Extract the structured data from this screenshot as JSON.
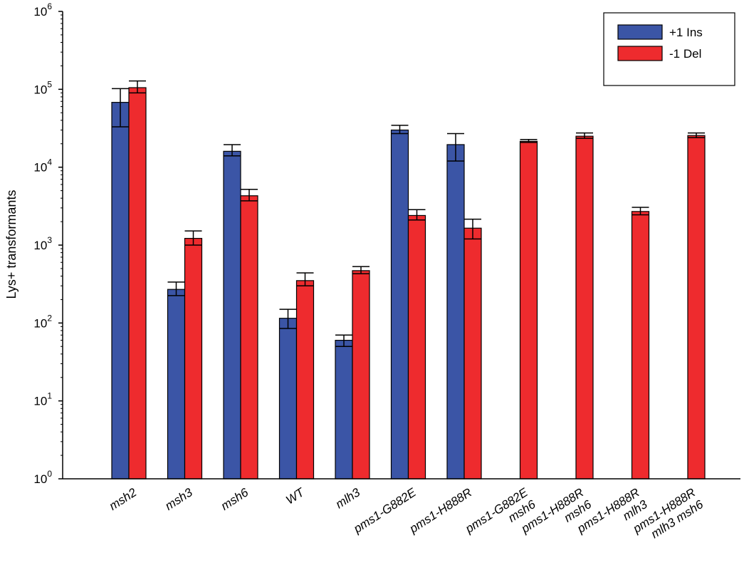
{
  "chart_data": {
    "type": "bar",
    "title": "",
    "xlabel": "",
    "ylabel": "Lys+ transformants",
    "yscale": "log",
    "ylim": [
      1,
      1000000
    ],
    "y_ticks": [
      {
        "value": 1,
        "base": "10",
        "exp": "0"
      },
      {
        "value": 10,
        "base": "10",
        "exp": "1"
      },
      {
        "value": 100,
        "base": "10",
        "exp": "2"
      },
      {
        "value": 1000,
        "base": "10",
        "exp": "3"
      },
      {
        "value": 10000,
        "base": "10",
        "exp": "4"
      },
      {
        "value": 100000,
        "base": "10",
        "exp": "5"
      },
      {
        "value": 1000000,
        "base": "10",
        "exp": "6"
      }
    ],
    "grid": false,
    "legend_position": "top-right",
    "categories": [
      {
        "lines": [
          "msh2"
        ]
      },
      {
        "lines": [
          "msh3"
        ]
      },
      {
        "lines": [
          "msh6"
        ]
      },
      {
        "lines": [
          "WT"
        ]
      },
      {
        "lines": [
          "mlh3"
        ]
      },
      {
        "lines": [
          "pms1-G882E"
        ]
      },
      {
        "lines": [
          "pms1-H888R"
        ]
      },
      {
        "lines": [
          "pms1-G882E",
          "msh6"
        ]
      },
      {
        "lines": [
          "pms1-H888R",
          "msh6"
        ]
      },
      {
        "lines": [
          "pms1-H888R",
          "mlh3"
        ]
      },
      {
        "lines": [
          "pms1-H888R",
          "mlh3 msh6"
        ]
      }
    ],
    "series": [
      {
        "name": "+1 Ins",
        "color": "#3b55a6",
        "values": [
          68000,
          270,
          16000,
          115,
          60,
          30000,
          19500,
          null,
          null,
          null,
          null
        ],
        "err_high": [
          102000,
          335,
          19500,
          150,
          70,
          34500,
          27000,
          null,
          null,
          null,
          null
        ],
        "err_low": [
          33000,
          225,
          14000,
          85,
          50,
          27000,
          12000,
          null,
          null,
          null,
          null
        ]
      },
      {
        "name": "-1 Del",
        "color": "#ee2b2e",
        "values": [
          105000,
          1220,
          4300,
          350,
          470,
          2400,
          1650,
          21500,
          25000,
          2700,
          25500
        ],
        "err_high": [
          128000,
          1520,
          5200,
          440,
          530,
          2850,
          2150,
          22700,
          27500,
          3050,
          27500
        ],
        "err_low": [
          90000,
          1000,
          3700,
          300,
          430,
          2100,
          1200,
          20800,
          23500,
          2450,
          24000
        ]
      }
    ]
  }
}
